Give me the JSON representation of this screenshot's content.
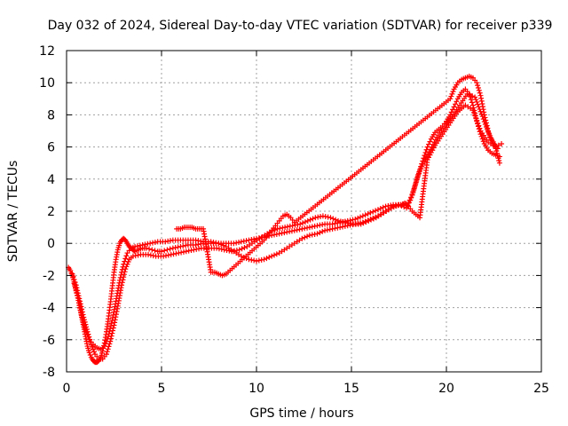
{
  "chart_data": {
    "type": "scatter",
    "title": "Day 032 of 2024, Sidereal Day-to-day VTEC variation (SDTVAR) for receiver p339",
    "xlabel": "GPS time / hours",
    "ylabel": "SDTVAR / TECUs",
    "xlim": [
      0,
      25
    ],
    "ylim": [
      -8,
      12
    ],
    "xticks": [
      0,
      5,
      10,
      15,
      20,
      25
    ],
    "yticks": [
      -8,
      -6,
      -4,
      -2,
      0,
      2,
      4,
      6,
      8,
      10,
      12
    ],
    "grid": true,
    "marker": "+",
    "color": "#ff0000",
    "series": [
      {
        "x": [
          0.1,
          0.2,
          0.3,
          0.4,
          0.5,
          0.6,
          0.7,
          0.8,
          0.9,
          1.0,
          1.1,
          1.2,
          1.3,
          1.4,
          1.5,
          1.6,
          1.7,
          1.8,
          1.9,
          2.0,
          2.1,
          2.2,
          2.3,
          2.4,
          2.5,
          2.6,
          2.7,
          2.8,
          2.9,
          3.0,
          3.1,
          3.2,
          3.3,
          3.4,
          3.5,
          3.6,
          3.8,
          4.0,
          4.2,
          4.5,
          4.8,
          5.0,
          5.3,
          5.6,
          6.0,
          6.4,
          6.8,
          7.2,
          7.6,
          8.0,
          8.4,
          8.8,
          9.2,
          9.6,
          10.0,
          10.4,
          10.8,
          11.2,
          11.6,
          12.0,
          12.4,
          12.8,
          13.2,
          13.6,
          14.0,
          14.4,
          14.8,
          15.2,
          15.6,
          16.0,
          16.4,
          16.8,
          17.2,
          17.6,
          18.0,
          18.2,
          18.4,
          18.6,
          18.8,
          19.0,
          19.2,
          19.4,
          19.6,
          19.8,
          20.0,
          20.2,
          20.4,
          20.6,
          20.8,
          21.0,
          21.2,
          21.4,
          21.6,
          21.8,
          22.0,
          22.2,
          22.4,
          22.6,
          22.8
        ],
        "y": [
          -1.5,
          -1.7,
          -2.0,
          -2.4,
          -2.9,
          -3.4,
          -4.0,
          -4.6,
          -5.2,
          -5.8,
          -6.4,
          -6.8,
          -7.1,
          -7.3,
          -7.4,
          -7.4,
          -7.3,
          -7.1,
          -6.7,
          -6.2,
          -5.5,
          -4.7,
          -3.8,
          -2.8,
          -1.8,
          -1.0,
          -0.4,
          0.0,
          0.2,
          0.3,
          0.2,
          0.0,
          -0.2,
          -0.3,
          -0.4,
          -0.5,
          -0.4,
          -0.3,
          -0.3,
          -0.4,
          -0.5,
          -0.5,
          -0.4,
          -0.3,
          -0.2,
          -0.1,
          -0.1,
          0.0,
          0.0,
          0.0,
          0.0,
          0.0,
          0.1,
          0.2,
          0.3,
          0.4,
          0.5,
          0.6,
          0.7,
          0.8,
          0.9,
          1.0,
          1.1,
          1.2,
          1.2,
          1.3,
          1.4,
          1.5,
          1.7,
          1.9,
          2.1,
          2.3,
          2.4,
          2.4,
          2.5,
          3.0,
          3.8,
          4.6,
          5.3,
          6.0,
          6.5,
          6.9,
          7.1,
          7.3,
          7.6,
          8.0,
          8.5,
          9.0,
          9.4,
          9.6,
          9.3,
          8.6,
          7.6,
          6.8,
          6.2,
          5.8,
          5.6,
          5.5,
          5.4
        ]
      },
      {
        "x": [
          0.4,
          0.6,
          0.8,
          1.0,
          1.2,
          1.4,
          1.6,
          1.8,
          2.0,
          2.2,
          2.4,
          2.6,
          2.8,
          3.0,
          3.2,
          3.4,
          3.6,
          4.0,
          4.4,
          4.8,
          5.2,
          5.6,
          6.0,
          6.4,
          6.8,
          7.2,
          7.6,
          8.0,
          8.4,
          8.8,
          9.2,
          9.6,
          10.0,
          10.4,
          10.8,
          11.2,
          11.6,
          12.0,
          12.4,
          12.8,
          13.2,
          13.6,
          14.0,
          14.4,
          14.8,
          15.2,
          15.6,
          16.0,
          16.4,
          16.8,
          17.2,
          17.6,
          17.8,
          18.0,
          18.2,
          18.4,
          18.6,
          19.0,
          19.4,
          19.8,
          20.2,
          20.6,
          21.0,
          21.4,
          21.8,
          22.2,
          22.6,
          22.9
        ],
        "y": [
          -2.5,
          -3.4,
          -4.5,
          -5.4,
          -6.0,
          -6.3,
          -6.5,
          -6.6,
          -6.4,
          -5.8,
          -4.8,
          -3.6,
          -2.3,
          -1.3,
          -0.6,
          -0.3,
          -0.2,
          -0.1,
          0.0,
          0.1,
          0.1,
          0.2,
          0.2,
          0.2,
          0.2,
          0.1,
          0.1,
          0.0,
          -0.2,
          -0.5,
          -0.8,
          -1.0,
          -1.1,
          -1.0,
          -0.8,
          -0.6,
          -0.3,
          0.0,
          0.3,
          0.5,
          0.6,
          0.8,
          0.9,
          1.0,
          1.1,
          1.2,
          1.3,
          1.5,
          1.7,
          2.0,
          2.3,
          2.4,
          2.5,
          2.3,
          2.0,
          1.8,
          1.6,
          5.2,
          6.1,
          6.8,
          7.5,
          8.2,
          8.6,
          8.3,
          7.0,
          6.3,
          6.0,
          6.2
        ]
      },
      {
        "x": [
          0.3,
          0.5,
          0.7,
          0.9,
          1.1,
          1.3,
          1.5,
          1.7,
          1.9,
          2.1,
          2.3,
          2.5,
          2.7,
          2.9,
          3.1,
          3.3,
          3.5,
          3.9,
          4.3,
          4.7,
          5.1,
          5.5,
          5.9,
          6.3,
          6.7,
          7.1,
          7.5,
          7.9,
          8.3,
          8.7,
          9.1,
          9.5,
          9.9,
          10.3,
          10.7,
          11.1,
          11.5,
          11.9,
          12.3,
          12.7,
          13.1,
          13.5,
          13.9,
          14.3,
          14.7,
          15.1,
          15.5,
          15.9,
          16.3,
          16.7,
          17.1,
          17.5,
          17.9,
          18.1,
          18.3,
          18.5,
          18.7,
          19.1,
          19.5,
          19.9,
          20.3,
          20.7,
          21.1,
          21.5,
          21.9,
          22.3,
          22.7
        ],
        "y": [
          -1.9,
          -2.6,
          -3.6,
          -4.6,
          -5.5,
          -6.3,
          -6.9,
          -7.2,
          -7.2,
          -6.9,
          -6.1,
          -5.1,
          -3.9,
          -2.6,
          -1.6,
          -1.0,
          -0.8,
          -0.7,
          -0.7,
          -0.8,
          -0.8,
          -0.7,
          -0.6,
          -0.5,
          -0.4,
          -0.3,
          -0.3,
          -0.3,
          -0.4,
          -0.5,
          -0.4,
          -0.2,
          0.1,
          0.4,
          0.7,
          0.9,
          1.0,
          1.1,
          1.2,
          1.4,
          1.6,
          1.7,
          1.6,
          1.4,
          1.3,
          1.2,
          1.2,
          1.4,
          1.6,
          1.9,
          2.2,
          2.4,
          2.2,
          2.7,
          3.4,
          4.2,
          4.8,
          5.7,
          6.6,
          7.3,
          7.9,
          8.6,
          9.3,
          9.1,
          7.9,
          6.6,
          5.9
        ]
      },
      {
        "x": [
          5.8,
          6.0,
          6.2,
          6.4,
          6.6,
          6.8,
          7.0,
          7.2,
          7.6,
          7.8,
          8.0,
          8.2,
          8.4,
          10.4,
          10.6,
          10.8,
          11.0,
          11.2,
          11.4,
          11.6,
          11.8,
          12.0,
          20.2,
          20.4,
          20.6,
          20.8,
          21.0,
          21.2,
          21.4,
          21.6,
          21.8,
          22.0,
          22.2,
          22.4,
          22.6,
          22.8
        ],
        "y": [
          0.9,
          0.9,
          1.0,
          1.0,
          1.0,
          0.9,
          0.9,
          0.9,
          -1.8,
          -1.8,
          -1.9,
          -2.0,
          -1.9,
          0.2,
          0.5,
          0.8,
          1.1,
          1.4,
          1.7,
          1.8,
          1.6,
          1.3,
          9.0,
          9.6,
          10.0,
          10.2,
          10.3,
          10.4,
          10.3,
          10.0,
          9.2,
          8.0,
          7.0,
          6.4,
          5.9,
          5.0
        ]
      }
    ]
  }
}
